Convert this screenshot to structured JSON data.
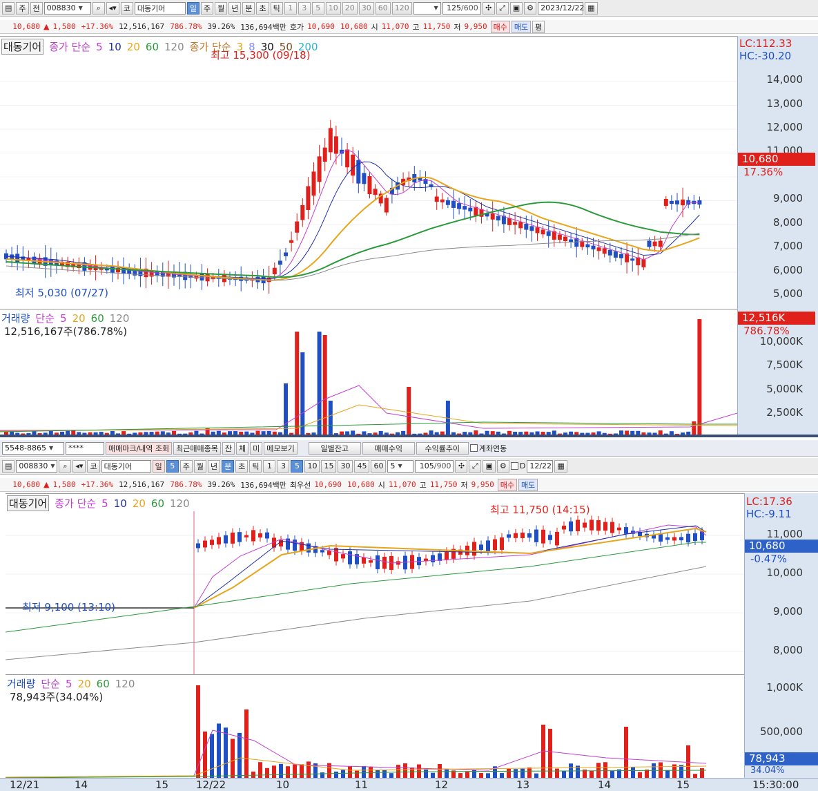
{
  "top": {
    "toolbar": {
      "period_tabs": [
        "주",
        "전"
      ],
      "code": "008830",
      "market": "코",
      "name": "대동기어",
      "intervals": [
        "일",
        "주",
        "월",
        "년",
        "분",
        "초",
        "틱"
      ],
      "steps": [
        "1",
        "3",
        "5",
        "10",
        "20",
        "30",
        "60",
        "120"
      ],
      "count": "125",
      "count_max": "/600",
      "date": "2023/12/22"
    },
    "quote": {
      "price": "10,680",
      "change_arrow": "▲",
      "change": "1,580",
      "change_pct": "+17.36%",
      "volume": "12,516,167",
      "volume_ratio": "786.78%",
      "turnover": "39.26%",
      "amount": "136,694백만",
      "hoga_label": "호가",
      "ask": "10,690",
      "bid": "10,680",
      "open_label": "시",
      "open": "11,070",
      "high_label": "고",
      "high": "11,750",
      "low_label": "저",
      "low": "9,950",
      "buy_label": "매수",
      "sell_label": "매도",
      "avg_label": "평"
    },
    "legend": {
      "name": "대동기어",
      "ma_title": "종가 단순",
      "periods": [
        "5",
        "10",
        "20",
        "60",
        "120"
      ],
      "ma2_title": "종가 단순",
      "periods2": [
        "3",
        "8",
        "30",
        "50",
        "200"
      ]
    },
    "annotations": {
      "high": "최고 15,300 (09/18)",
      "low": "최저 5,030 (07/27)"
    },
    "axis": {
      "lc": "LC:112.33",
      "hc": "HC:-30.20",
      "ticks": [
        "14,000",
        "13,000",
        "12,000",
        "11,000",
        "9,000",
        "8,000",
        "7,000",
        "6,000",
        "5,000"
      ],
      "current": "10,680",
      "current_pct": "17.36%"
    },
    "volume": {
      "title": "거래량",
      "ma_title": "단순",
      "periods": [
        "5",
        "20",
        "60",
        "120"
      ],
      "value": "12,516,167주(786.78%)",
      "axis_ticks": [
        "10,000K",
        "7,500K",
        "5,000K",
        "2,500K"
      ],
      "current": "12,516K",
      "current_pct": "786.78%"
    }
  },
  "bottom": {
    "account_bar": {
      "account": "5548-8865",
      "password": "****",
      "buttons": [
        "매매마크/내역 조회",
        "최근매매종목",
        "잔",
        "체",
        "미",
        "메모보기",
        "일별잔고",
        "매매수익",
        "수익률추이"
      ],
      "checkbox": "계좌연동"
    },
    "toolbar": {
      "code": "008830",
      "market": "코",
      "name": "대동기어",
      "interval": "일",
      "interval_n": "5",
      "intervals": [
        "주",
        "월",
        "년",
        "분",
        "초",
        "틱"
      ],
      "steps": [
        "1",
        "3",
        "5",
        "10",
        "15",
        "30",
        "45",
        "60"
      ],
      "step_select": "5",
      "count": "105",
      "count_max": "/900",
      "date_prefix": "D",
      "date": "12/22"
    },
    "quote": {
      "price": "10,680",
      "change_arrow": "▲",
      "change": "1,580",
      "change_pct": "+17.36%",
      "volume": "12,516,167",
      "volume_ratio": "786.78%",
      "turnover": "39.26%",
      "amount": "136,694백만",
      "hoga_label": "최우선",
      "ask": "10,690",
      "bid": "10,680",
      "open_label": "시",
      "open": "11,070",
      "high_label": "고",
      "high": "11,750",
      "low_label": "저",
      "low": "9,950",
      "buy_label": "매수",
      "sell_label": "매도"
    },
    "legend": {
      "name": "대동기어",
      "ma_title": "종가 단순",
      "periods": [
        "5",
        "10",
        "20",
        "60",
        "120"
      ]
    },
    "annotations": {
      "high": "최고 11,750 (14:15)",
      "low": "최저 9,100 (13:10)"
    },
    "axis": {
      "lc": "LC:17.36",
      "hc": "HC:-9.11",
      "ticks": [
        "11,000",
        "10,000",
        "9,000",
        "8,000"
      ],
      "current": "10,680",
      "current_pct": "-0.47%"
    },
    "volume": {
      "title": "거래량",
      "ma_title": "단순",
      "periods": [
        "5",
        "20",
        "60",
        "120"
      ],
      "value": "78,943주(34.04%)",
      "axis_ticks": [
        "1,000K",
        "500,000"
      ],
      "current": "78,943",
      "current_pct": "34.04%"
    },
    "time_axis": [
      "12/21",
      "14",
      "15",
      "12/22",
      "10",
      "11",
      "12",
      "13",
      "14",
      "15"
    ],
    "clock": "15:30:00"
  },
  "colors": {
    "up": "#e0201b",
    "down": "#1f4fc2",
    "ma5": "#c23fd1",
    "ma10": "#1d2fa8",
    "ma20": "#e6a51a",
    "ma60": "#2b9a3a",
    "ma120": "#8a8a8a",
    "axis_bg": "#dbe5f1"
  }
}
